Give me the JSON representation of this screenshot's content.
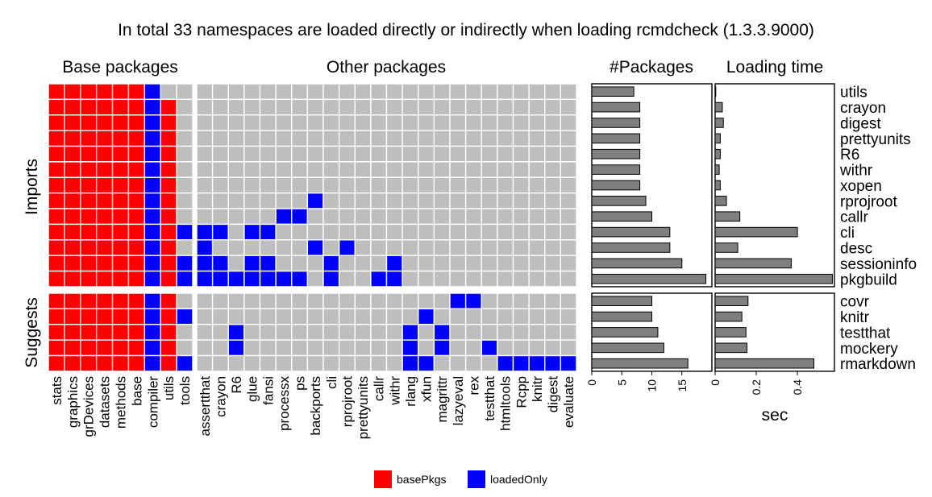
{
  "title": "In total 33 namespaces are loaded directly or indirectly when loading rcmdcheck (1.3.3.9000)",
  "panels": {
    "base": "Base packages",
    "other": "Other packages",
    "count": "#Packages",
    "time": "Loading time"
  },
  "row_groups": [
    "Imports",
    "Suggests"
  ],
  "legend": [
    {
      "key": "basePkgs",
      "label": "basePkgs",
      "color": "#ff0000"
    },
    {
      "key": "loadedOnly",
      "label": "loadedOnly",
      "color": "#0000ff"
    }
  ],
  "colors": {
    "empty": "#bebebe",
    "bar": "#7f7f7f",
    "panel_border": "#000000"
  },
  "chart_data": [
    {
      "type": "heatmap",
      "title": "Base packages",
      "columns": [
        "stats",
        "graphics",
        "grDevices",
        "datasets",
        "methods",
        "base",
        "compiler",
        "utils",
        "tools"
      ],
      "rows": [
        "utils",
        "crayon",
        "digest",
        "prettyunits",
        "R6",
        "withr",
        "xopen",
        "rprojroot",
        "callr",
        "cli",
        "desc",
        "sessioninfo",
        "pkgbuild",
        "covr",
        "knitr",
        "testthat",
        "mockery",
        "rmarkdown"
      ],
      "row_groups": {
        "Imports": 13,
        "Suggests": 5
      },
      "cells": [
        "RRRRRRB..",
        "RRRRRRBR.",
        "RRRRRRBR.",
        "RRRRRRBR.",
        "RRRRRRBR.",
        "RRRRRRBR.",
        "RRRRRRBR.",
        "RRRRRRBR.",
        "RRRRRRBR.",
        "RRRRRRBRB",
        "RRRRRRBR.",
        "RRRRRRBRB",
        "RRRRRRBRB",
        "RRRRRRBR.",
        "RRRRRRBRB",
        "RRRRRRBR.",
        "RRRRRRBR.",
        "RRRRRRBRB"
      ],
      "cell_legend": {
        "R": "basePkgs",
        "B": "loadedOnly",
        ".": "not loaded"
      }
    },
    {
      "type": "heatmap",
      "title": "Other packages",
      "columns": [
        "assertthat",
        "crayon",
        "R6",
        "glue",
        "fansi",
        "processx",
        "ps",
        "backports",
        "cli",
        "rprojroot",
        "prettyunits",
        "callr",
        "withr",
        "rlang",
        "xfun",
        "magrittr",
        "lazyeval",
        "rex",
        "testthat",
        "htmltools",
        "Rcpp",
        "knitr",
        "digest",
        "evaluate"
      ],
      "rows": [
        "utils",
        "crayon",
        "digest",
        "prettyunits",
        "R6",
        "withr",
        "xopen",
        "rprojroot",
        "callr",
        "cli",
        "desc",
        "sessioninfo",
        "pkgbuild",
        "covr",
        "knitr",
        "testthat",
        "mockery",
        "rmarkdown"
      ],
      "cells": [
        "........................",
        "........................",
        "........................",
        "........................",
        "........................",
        "........................",
        "........................",
        ".......B................",
        ".....BB.................",
        "BB.BB...................",
        "B......B.B..............",
        "BB.BB...B...B...........",
        "BBBBBBB.B..BB...........",
        "................BB......",
        "..............B.........",
        "..B..........B.B........",
        "..B..........B.B..B.....",
        ".............BB....BBBBB"
      ],
      "cell_legend": {
        "B": "loadedOnly",
        ".": "not loaded"
      }
    },
    {
      "type": "bar",
      "title": "#Packages",
      "orientation": "horizontal",
      "categories": [
        "utils",
        "crayon",
        "digest",
        "prettyunits",
        "R6",
        "withr",
        "xopen",
        "rprojroot",
        "callr",
        "cli",
        "desc",
        "sessioninfo",
        "pkgbuild",
        "covr",
        "knitr",
        "testthat",
        "mockery",
        "rmarkdown"
      ],
      "values": [
        7,
        8,
        8,
        8,
        8,
        8,
        8,
        9,
        10,
        13,
        13,
        15,
        19,
        10,
        10,
        11,
        12,
        16
      ],
      "xticks": [
        0,
        5,
        10,
        15
      ],
      "xlim": [
        0,
        20
      ],
      "xlabel": ""
    },
    {
      "type": "bar",
      "title": "Loading time",
      "orientation": "horizontal",
      "categories": [
        "utils",
        "crayon",
        "digest",
        "prettyunits",
        "R6",
        "withr",
        "xopen",
        "rprojroot",
        "callr",
        "cli",
        "desc",
        "sessioninfo",
        "pkgbuild",
        "covr",
        "knitr",
        "testthat",
        "mockery",
        "rmarkdown"
      ],
      "values": [
        0.0,
        0.035,
        0.04,
        0.025,
        0.025,
        0.02,
        0.025,
        0.055,
        0.12,
        0.4,
        0.11,
        0.37,
        0.57,
        0.16,
        0.13,
        0.15,
        0.155,
        0.48
      ],
      "xticks": [
        0,
        0.2,
        0.4
      ],
      "xlim": [
        0,
        0.58
      ],
      "xlabel": "sec"
    }
  ]
}
